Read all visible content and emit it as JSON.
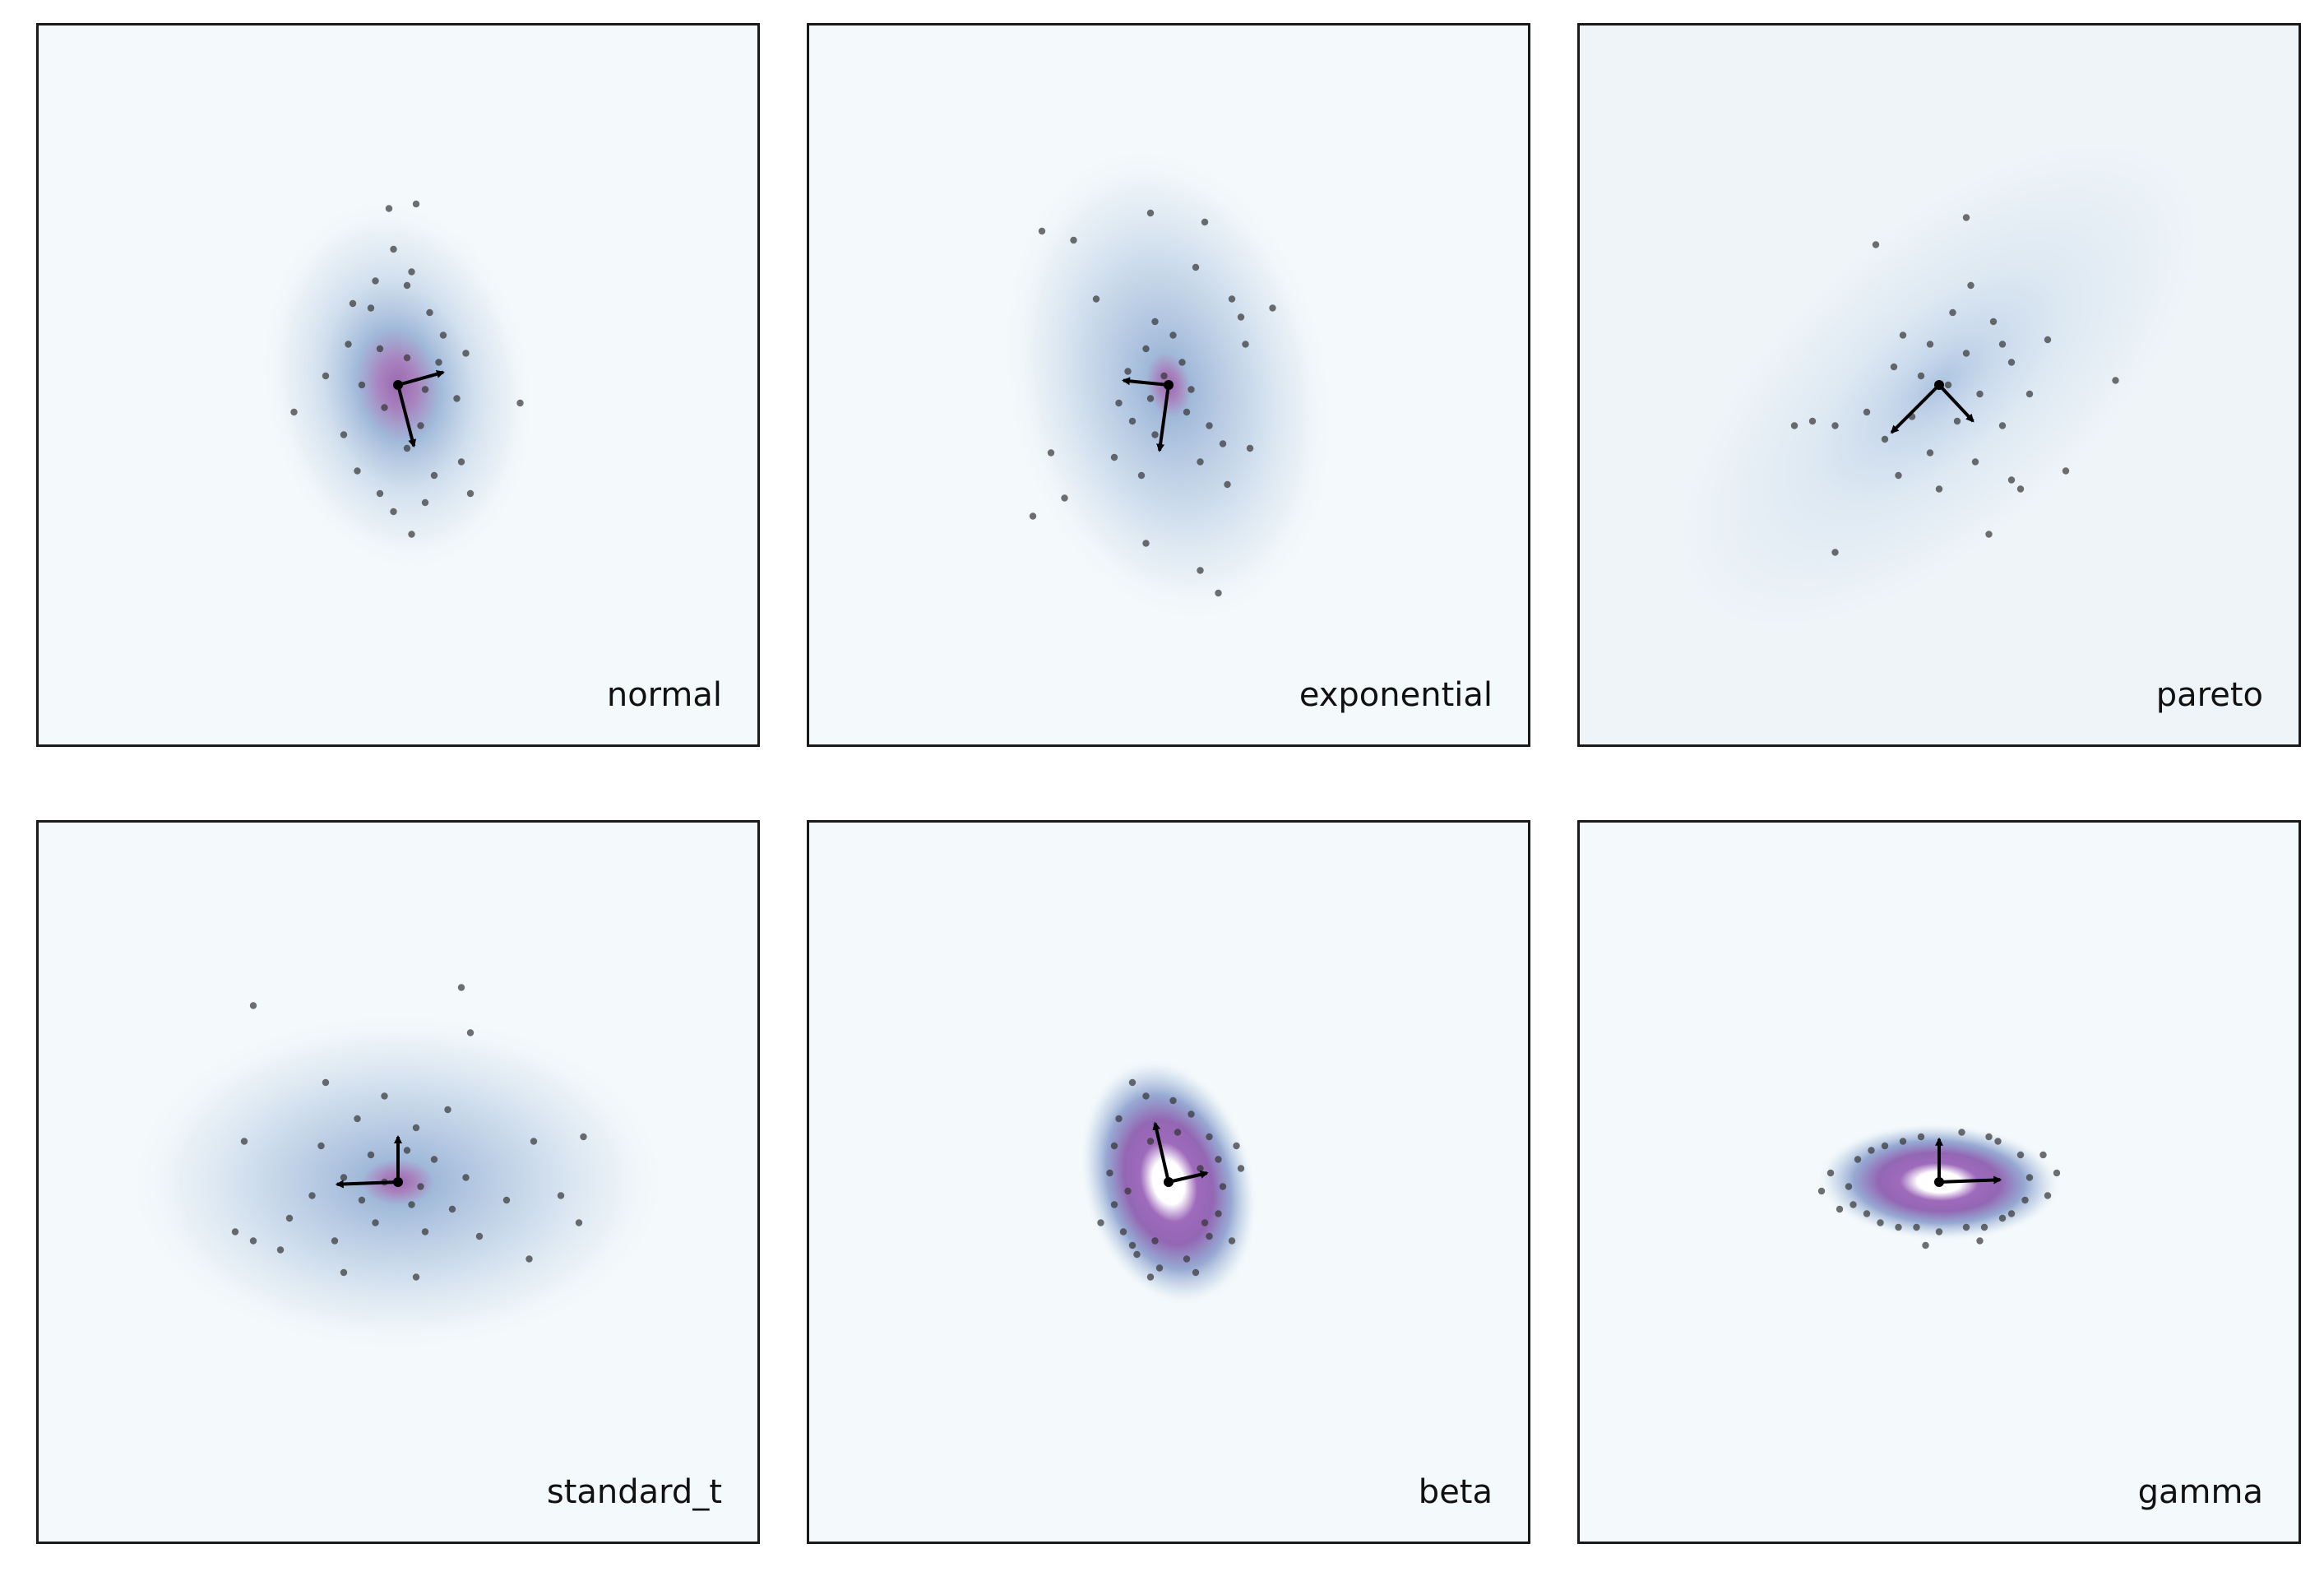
{
  "chart_data": [
    {
      "type": "scatter",
      "label": "normal",
      "center": [
        0,
        0
      ],
      "density": {
        "peak": "purple",
        "hole": false,
        "axes": [
          3.0,
          4.2
        ],
        "rotation_deg": -10,
        "concentration": 1.0,
        "bg": "#f4f9fb"
      },
      "arrows": [
        [
          1.0,
          0.28
        ],
        [
          0.35,
          -1.35
        ]
      ],
      "points": [
        [
          -0.2,
          3.9
        ],
        [
          0.4,
          4.0
        ],
        [
          -0.1,
          3.0
        ],
        [
          0.3,
          2.5
        ],
        [
          -0.5,
          2.3
        ],
        [
          0.2,
          2.2
        ],
        [
          -1.0,
          1.8
        ],
        [
          -0.6,
          1.7
        ],
        [
          0.7,
          1.6
        ],
        [
          1.0,
          1.1
        ],
        [
          -1.1,
          0.9
        ],
        [
          -0.4,
          0.8
        ],
        [
          0.2,
          0.6
        ],
        [
          0.9,
          0.5
        ],
        [
          1.5,
          0.7
        ],
        [
          -1.6,
          0.2
        ],
        [
          -0.8,
          0.0
        ],
        [
          0.6,
          -0.1
        ],
        [
          1.3,
          -0.3
        ],
        [
          -0.3,
          -0.5
        ],
        [
          0.5,
          -0.9
        ],
        [
          -1.2,
          -1.1
        ],
        [
          0.2,
          -1.4
        ],
        [
          1.4,
          -1.7
        ],
        [
          -0.9,
          -1.9
        ],
        [
          0.8,
          -2.0
        ],
        [
          -0.4,
          -2.4
        ],
        [
          0.6,
          -2.6
        ],
        [
          1.6,
          -2.4
        ],
        [
          -0.1,
          -2.8
        ],
        [
          0.3,
          -3.3
        ],
        [
          -2.3,
          -0.6
        ],
        [
          2.7,
          -0.4
        ]
      ]
    },
    {
      "type": "scatter",
      "label": "exponential",
      "center": [
        0,
        0
      ],
      "density": {
        "peak": "purple",
        "hole": false,
        "axes": [
          3.6,
          5.4
        ],
        "rotation_deg": -12,
        "concentration": 0.45,
        "bg": "#f4f9fb"
      },
      "arrows": [
        [
          -1.0,
          0.1
        ],
        [
          -0.2,
          -1.45
        ]
      ],
      "points": [
        [
          -2.8,
          3.4
        ],
        [
          -2.1,
          3.2
        ],
        [
          -0.4,
          3.8
        ],
        [
          0.8,
          3.6
        ],
        [
          0.6,
          2.6
        ],
        [
          1.4,
          1.9
        ],
        [
          1.6,
          1.5
        ],
        [
          1.7,
          0.9
        ],
        [
          -1.6,
          1.9
        ],
        [
          -0.3,
          1.4
        ],
        [
          0.1,
          1.1
        ],
        [
          -0.5,
          0.8
        ],
        [
          0.3,
          0.5
        ],
        [
          -0.9,
          0.3
        ],
        [
          -0.1,
          0.2
        ],
        [
          0.5,
          -0.1
        ],
        [
          -1.1,
          -0.4
        ],
        [
          -0.4,
          -0.3
        ],
        [
          0.4,
          -0.6
        ],
        [
          -0.8,
          -0.8
        ],
        [
          0.9,
          -0.9
        ],
        [
          -0.3,
          -1.1
        ],
        [
          1.2,
          -1.3
        ],
        [
          -1.2,
          -1.6
        ],
        [
          0.7,
          -1.7
        ],
        [
          -0.6,
          -2.0
        ],
        [
          1.3,
          -2.2
        ],
        [
          -2.6,
          -1.5
        ],
        [
          -3.0,
          -2.9
        ],
        [
          -2.3,
          -2.5
        ],
        [
          -0.5,
          -3.5
        ],
        [
          0.7,
          -4.1
        ],
        [
          1.1,
          -4.6
        ],
        [
          1.8,
          -1.4
        ],
        [
          2.3,
          1.7
        ]
      ]
    },
    {
      "type": "scatter",
      "label": "pareto",
      "center": [
        0,
        0
      ],
      "density": {
        "peak": "blue",
        "hole": false,
        "axes": [
          3.6,
          7.6
        ],
        "rotation_deg": 48,
        "concentration": 0.35,
        "bg": "#eef4f8"
      },
      "arrows": [
        [
          -1.05,
          -1.05
        ],
        [
          0.75,
          -0.8
        ]
      ],
      "points": [
        [
          0.6,
          3.7
        ],
        [
          -1.4,
          3.1
        ],
        [
          0.7,
          2.2
        ],
        [
          0.3,
          1.6
        ],
        [
          1.2,
          1.4
        ],
        [
          -0.8,
          1.1
        ],
        [
          -0.2,
          0.9
        ],
        [
          0.6,
          0.7
        ],
        [
          1.6,
          0.5
        ],
        [
          -1.0,
          0.4
        ],
        [
          -0.4,
          0.2
        ],
        [
          0.2,
          0.0
        ],
        [
          0.9,
          -0.2
        ],
        [
          -1.6,
          -0.6
        ],
        [
          -0.6,
          -0.7
        ],
        [
          0.4,
          -0.8
        ],
        [
          1.4,
          -0.9
        ],
        [
          -1.2,
          -1.2
        ],
        [
          -0.2,
          -1.5
        ],
        [
          0.8,
          -1.7
        ],
        [
          -0.9,
          -2.0
        ],
        [
          0.0,
          -2.3
        ],
        [
          1.6,
          -2.1
        ],
        [
          -2.3,
          -0.9
        ],
        [
          -2.8,
          -0.8
        ],
        [
          -3.2,
          -0.9
        ],
        [
          2.0,
          -0.2
        ],
        [
          2.4,
          1.0
        ],
        [
          3.9,
          0.1
        ],
        [
          1.8,
          -2.3
        ],
        [
          2.8,
          -1.9
        ],
        [
          1.1,
          -3.3
        ],
        [
          -2.3,
          -3.7
        ],
        [
          1.4,
          0.9
        ]
      ]
    },
    {
      "type": "scatter",
      "label": "standard_t",
      "center": [
        0,
        0
      ],
      "density": {
        "peak": "purple",
        "hole": false,
        "axes": [
          6.0,
          3.8
        ],
        "rotation_deg": 0,
        "concentration": 0.45,
        "bg": "#f4f9fb"
      },
      "arrows": [
        [
          -1.35,
          -0.05
        ],
        [
          0.0,
          1.0
        ]
      ],
      "points": [
        [
          -3.2,
          3.9
        ],
        [
          1.4,
          4.3
        ],
        [
          1.6,
          3.3
        ],
        [
          -1.6,
          2.2
        ],
        [
          -0.3,
          1.9
        ],
        [
          1.1,
          1.6
        ],
        [
          -0.9,
          1.4
        ],
        [
          0.4,
          1.2
        ],
        [
          -1.7,
          0.8
        ],
        [
          -0.6,
          0.6
        ],
        [
          0.2,
          0.7
        ],
        [
          0.8,
          0.5
        ],
        [
          -1.2,
          0.1
        ],
        [
          -0.3,
          0.0
        ],
        [
          0.5,
          -0.1
        ],
        [
          1.5,
          0.1
        ],
        [
          -1.9,
          -0.3
        ],
        [
          -0.8,
          -0.4
        ],
        [
          0.3,
          -0.5
        ],
        [
          1.2,
          -0.6
        ],
        [
          -0.5,
          -0.9
        ],
        [
          0.6,
          -1.1
        ],
        [
          -1.4,
          -1.3
        ],
        [
          1.8,
          -1.2
        ],
        [
          -2.4,
          -0.8
        ],
        [
          2.4,
          -0.4
        ],
        [
          -3.4,
          0.9
        ],
        [
          3.0,
          0.9
        ],
        [
          3.6,
          -0.3
        ],
        [
          -3.6,
          -1.1
        ],
        [
          -3.2,
          -1.3
        ],
        [
          4.1,
          1.0
        ],
        [
          4.0,
          -0.9
        ],
        [
          2.9,
          -1.7
        ],
        [
          -1.2,
          -2.0
        ],
        [
          0.4,
          -2.1
        ],
        [
          -2.6,
          -1.5
        ]
      ]
    },
    {
      "type": "scatter",
      "label": "beta",
      "center": [
        0,
        0
      ],
      "density": {
        "peak": "purple",
        "hole": true,
        "axes": [
          1.9,
          2.8
        ],
        "rotation_deg": -15,
        "concentration": 1.2,
        "bg": "#f4f9fb"
      },
      "arrows": [
        [
          0.85,
          0.2
        ],
        [
          -0.3,
          1.3
        ]
      ],
      "points": [
        [
          -0.8,
          2.2
        ],
        [
          -0.5,
          1.9
        ],
        [
          0.1,
          1.8
        ],
        [
          0.5,
          1.5
        ],
        [
          -1.1,
          1.4
        ],
        [
          0.9,
          1.0
        ],
        [
          -1.2,
          0.8
        ],
        [
          1.1,
          0.5
        ],
        [
          -1.3,
          0.2
        ],
        [
          1.2,
          -0.1
        ],
        [
          -1.2,
          -0.5
        ],
        [
          1.1,
          -0.7
        ],
        [
          -1.0,
          -1.1
        ],
        [
          0.9,
          -1.2
        ],
        [
          -0.7,
          -1.6
        ],
        [
          0.4,
          -1.7
        ],
        [
          -0.2,
          -1.9
        ],
        [
          0.6,
          -2.0
        ],
        [
          -0.8,
          -1.4
        ],
        [
          0.2,
          1.1
        ],
        [
          -0.4,
          0.9
        ],
        [
          0.7,
          0.3
        ],
        [
          -0.9,
          -0.2
        ],
        [
          0.8,
          -0.9
        ],
        [
          -0.3,
          -1.3
        ],
        [
          1.5,
          0.8
        ],
        [
          -1.5,
          -0.9
        ],
        [
          -0.4,
          -2.1
        ],
        [
          1.4,
          -1.3
        ],
        [
          1.6,
          0.3
        ]
      ]
    },
    {
      "type": "scatter",
      "label": "gamma",
      "center": [
        0,
        0
      ],
      "density": {
        "peak": "purple",
        "hole": true,
        "axes": [
          2.7,
          1.3
        ],
        "rotation_deg": 2,
        "concentration": 1.0,
        "bg": "#f4f9fb"
      },
      "arrows": [
        [
          1.35,
          0.05
        ],
        [
          0.0,
          0.95
        ]
      ],
      "points": [
        [
          0.5,
          1.1
        ],
        [
          -0.4,
          1.0
        ],
        [
          1.3,
          0.9
        ],
        [
          -1.2,
          0.8
        ],
        [
          1.8,
          0.6
        ],
        [
          -1.8,
          0.5
        ],
        [
          2.0,
          0.1
        ],
        [
          -2.0,
          -0.1
        ],
        [
          1.9,
          -0.4
        ],
        [
          -1.9,
          -0.5
        ],
        [
          1.4,
          -0.8
        ],
        [
          -1.3,
          -0.9
        ],
        [
          0.6,
          -1.0
        ],
        [
          -0.5,
          -1.0
        ],
        [
          0.0,
          -1.1
        ],
        [
          1.0,
          -1.0
        ],
        [
          -0.9,
          -1.0
        ],
        [
          2.4,
          -0.3
        ],
        [
          -2.4,
          0.2
        ],
        [
          -2.2,
          -0.6
        ],
        [
          2.3,
          0.6
        ],
        [
          0.9,
          -1.3
        ],
        [
          -0.3,
          -1.4
        ],
        [
          1.1,
          1.0
        ],
        [
          -0.8,
          0.9
        ],
        [
          -1.5,
          0.7
        ],
        [
          1.6,
          -0.7
        ],
        [
          -1.6,
          -0.7
        ],
        [
          2.6,
          0.2
        ],
        [
          -2.6,
          -0.2
        ]
      ]
    }
  ]
}
